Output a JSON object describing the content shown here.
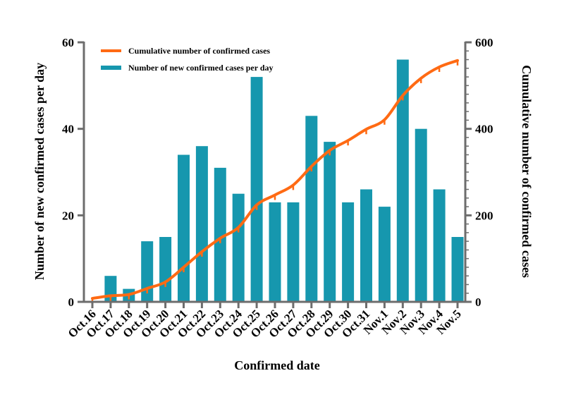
{
  "chart_data": {
    "type": "bar+line",
    "categories": [
      "Oct.16",
      "Oct.17",
      "Oct.18",
      "Oct.19",
      "Oct.20",
      "Oct.21",
      "Oct.22",
      "Oct.23",
      "Oct.24",
      "Oct.25",
      "Oct.26",
      "Oct.27",
      "Oct.28",
      "Oct.29",
      "Oct.30",
      "Oct.31",
      "Nov.1",
      "Nov.2",
      "Nov.3",
      "Nov.4",
      "Nov.5"
    ],
    "xlabel": "Confirmed date",
    "ylabel_left": "Number of new confirmed cases per day",
    "ylabel_right": "Cumulative number of confirmed cases",
    "ylim_left": [
      0,
      60
    ],
    "ylim_right": [
      0,
      600
    ],
    "yticks_left": [
      "0",
      "20",
      "40",
      "60"
    ],
    "yticks_right": [
      "0",
      "200",
      "400",
      "600"
    ],
    "grid": false,
    "legend_position": "top-left",
    "series": [
      {
        "name": "Cumulative number of confirmed cases",
        "type": "line",
        "axis": "right",
        "color": "#FF6A13",
        "values": [
          8,
          14,
          17,
          31,
          46,
          80,
          116,
          147,
          172,
          224,
          247,
          270,
          313,
          350,
          373,
          399,
          421,
          477,
          517,
          543,
          558
        ]
      },
      {
        "name": "Number of new confirmed cases per day",
        "type": "bar",
        "axis": "left",
        "color": "#1697AE",
        "values": [
          0,
          6,
          3,
          14,
          15,
          34,
          36,
          31,
          25,
          52,
          23,
          23,
          43,
          37,
          23,
          26,
          22,
          56,
          40,
          26,
          15
        ]
      }
    ]
  }
}
